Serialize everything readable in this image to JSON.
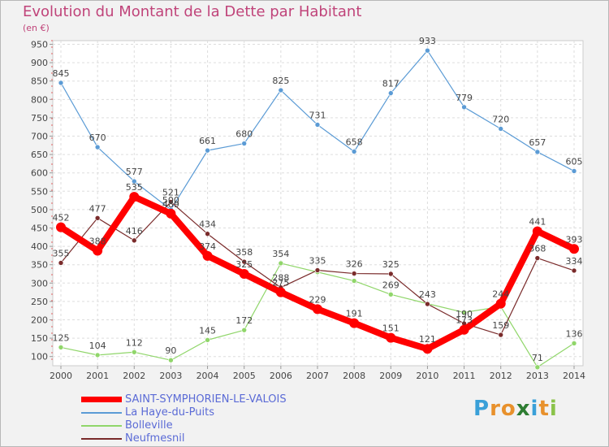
{
  "chart_data": {
    "type": "line",
    "title": "Evolution du Montant de la Dette par Habitant",
    "subtitle": "(en €)",
    "x": [
      "2000",
      "2001",
      "2002",
      "2003",
      "2004",
      "2005",
      "2006",
      "2007",
      "2008",
      "2009",
      "2010",
      "2011",
      "2012",
      "2013",
      "2014"
    ],
    "yticks": [
      100,
      150,
      200,
      250,
      300,
      350,
      400,
      450,
      500,
      550,
      600,
      650,
      700,
      750,
      800,
      850,
      900,
      950
    ],
    "ylim": [
      75,
      960
    ],
    "grid": true,
    "legend_position": "bottom-left",
    "series": [
      {
        "name": "La Haye-du-Puits",
        "color": "#5b9bd5",
        "values": [
          845,
          670,
          577,
          500,
          661,
          680,
          825,
          731,
          658,
          817,
          933,
          779,
          720,
          657,
          605
        ],
        "labels": [
          "845",
          "670",
          "577",
          "500",
          "661",
          "680",
          "825",
          "731",
          "658",
          "817",
          "933",
          "779",
          "720",
          "657",
          "605"
        ]
      },
      {
        "name": "Bolleville",
        "color": "#90d66a",
        "values": [
          125,
          104,
          112,
          90,
          145,
          172,
          354,
          330,
          306,
          269,
          244,
          220,
          236,
          71,
          136
        ],
        "labels": [
          "125",
          "104",
          "112",
          "90",
          "145",
          "172",
          "354",
          "",
          "",
          "269",
          "",
          "",
          "",
          "71",
          "136"
        ]
      },
      {
        "name": "Neufmesnil",
        "color": "#7a2b2b",
        "values": [
          355,
          477,
          416,
          521,
          434,
          358,
          288,
          335,
          326,
          325,
          243,
          190,
          159,
          368,
          334
        ],
        "labels": [
          "355",
          "477",
          "416",
          "521",
          "434",
          "358",
          "288",
          "335",
          "326",
          "325",
          "243",
          "190",
          "159",
          "368",
          "334"
        ]
      },
      {
        "name": "SAINT-SYMPHORIEN-LE-VALOIS",
        "color": "#ff0000",
        "values": [
          452,
          388,
          535,
          489,
          374,
          325,
          275,
          229,
          191,
          151,
          121,
          173,
          244,
          441,
          393
        ],
        "labels": [
          "452",
          "388",
          "535",
          "489",
          "374",
          "325",
          "275",
          "229",
          "191",
          "151",
          "121",
          "173",
          "244",
          "441",
          "393"
        ]
      }
    ]
  },
  "legend": {
    "items": [
      {
        "label": "SAINT-SYMPHORIEN-LE-VALOIS",
        "color": "#ff0000"
      },
      {
        "label": "La Haye-du-Puits",
        "color": "#5b9bd5"
      },
      {
        "label": "Bolleville",
        "color": "#90d66a"
      },
      {
        "label": "Neufmesnil",
        "color": "#7a2b2b"
      }
    ]
  },
  "brand": {
    "letters": [
      "P",
      "r",
      "o",
      "x",
      "i",
      "t",
      "i"
    ],
    "colors": [
      "#3aa0d8",
      "#e8912c",
      "#e8912c",
      "#2e7d32",
      "#3aa0d8",
      "#e8912c",
      "#8bc34a"
    ]
  }
}
